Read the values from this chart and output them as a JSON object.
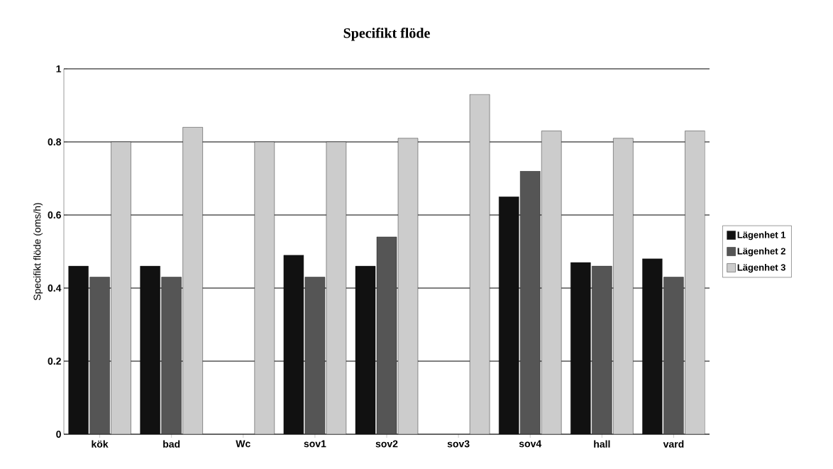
{
  "chart_data": {
    "type": "bar",
    "title": "Specifikt flöde",
    "ylabel": "Specifikt flöde (oms/h)",
    "categories": [
      "kök",
      "bad",
      "Wc",
      "sov1",
      "sov2",
      "sov3",
      "sov4",
      "hall",
      "vard"
    ],
    "series": [
      {
        "name": "Lägenhet 1",
        "color": "#111111",
        "values": [
          0.46,
          0.46,
          null,
          0.49,
          0.46,
          null,
          0.65,
          0.47,
          0.48
        ]
      },
      {
        "name": "Lägenhet 2",
        "color": "#555555",
        "values": [
          0.43,
          0.43,
          null,
          0.43,
          0.54,
          null,
          0.72,
          0.46,
          0.43
        ]
      },
      {
        "name": "Lägenhet 3",
        "color": "#cccccc",
        "values": [
          0.8,
          0.84,
          0.8,
          0.8,
          0.81,
          0.93,
          0.83,
          0.81,
          0.83
        ]
      }
    ],
    "ylim": [
      0,
      1
    ],
    "yticks": [
      0,
      0.2,
      0.4,
      0.6,
      0.8,
      1
    ],
    "grid": "y",
    "legend": "right"
  }
}
